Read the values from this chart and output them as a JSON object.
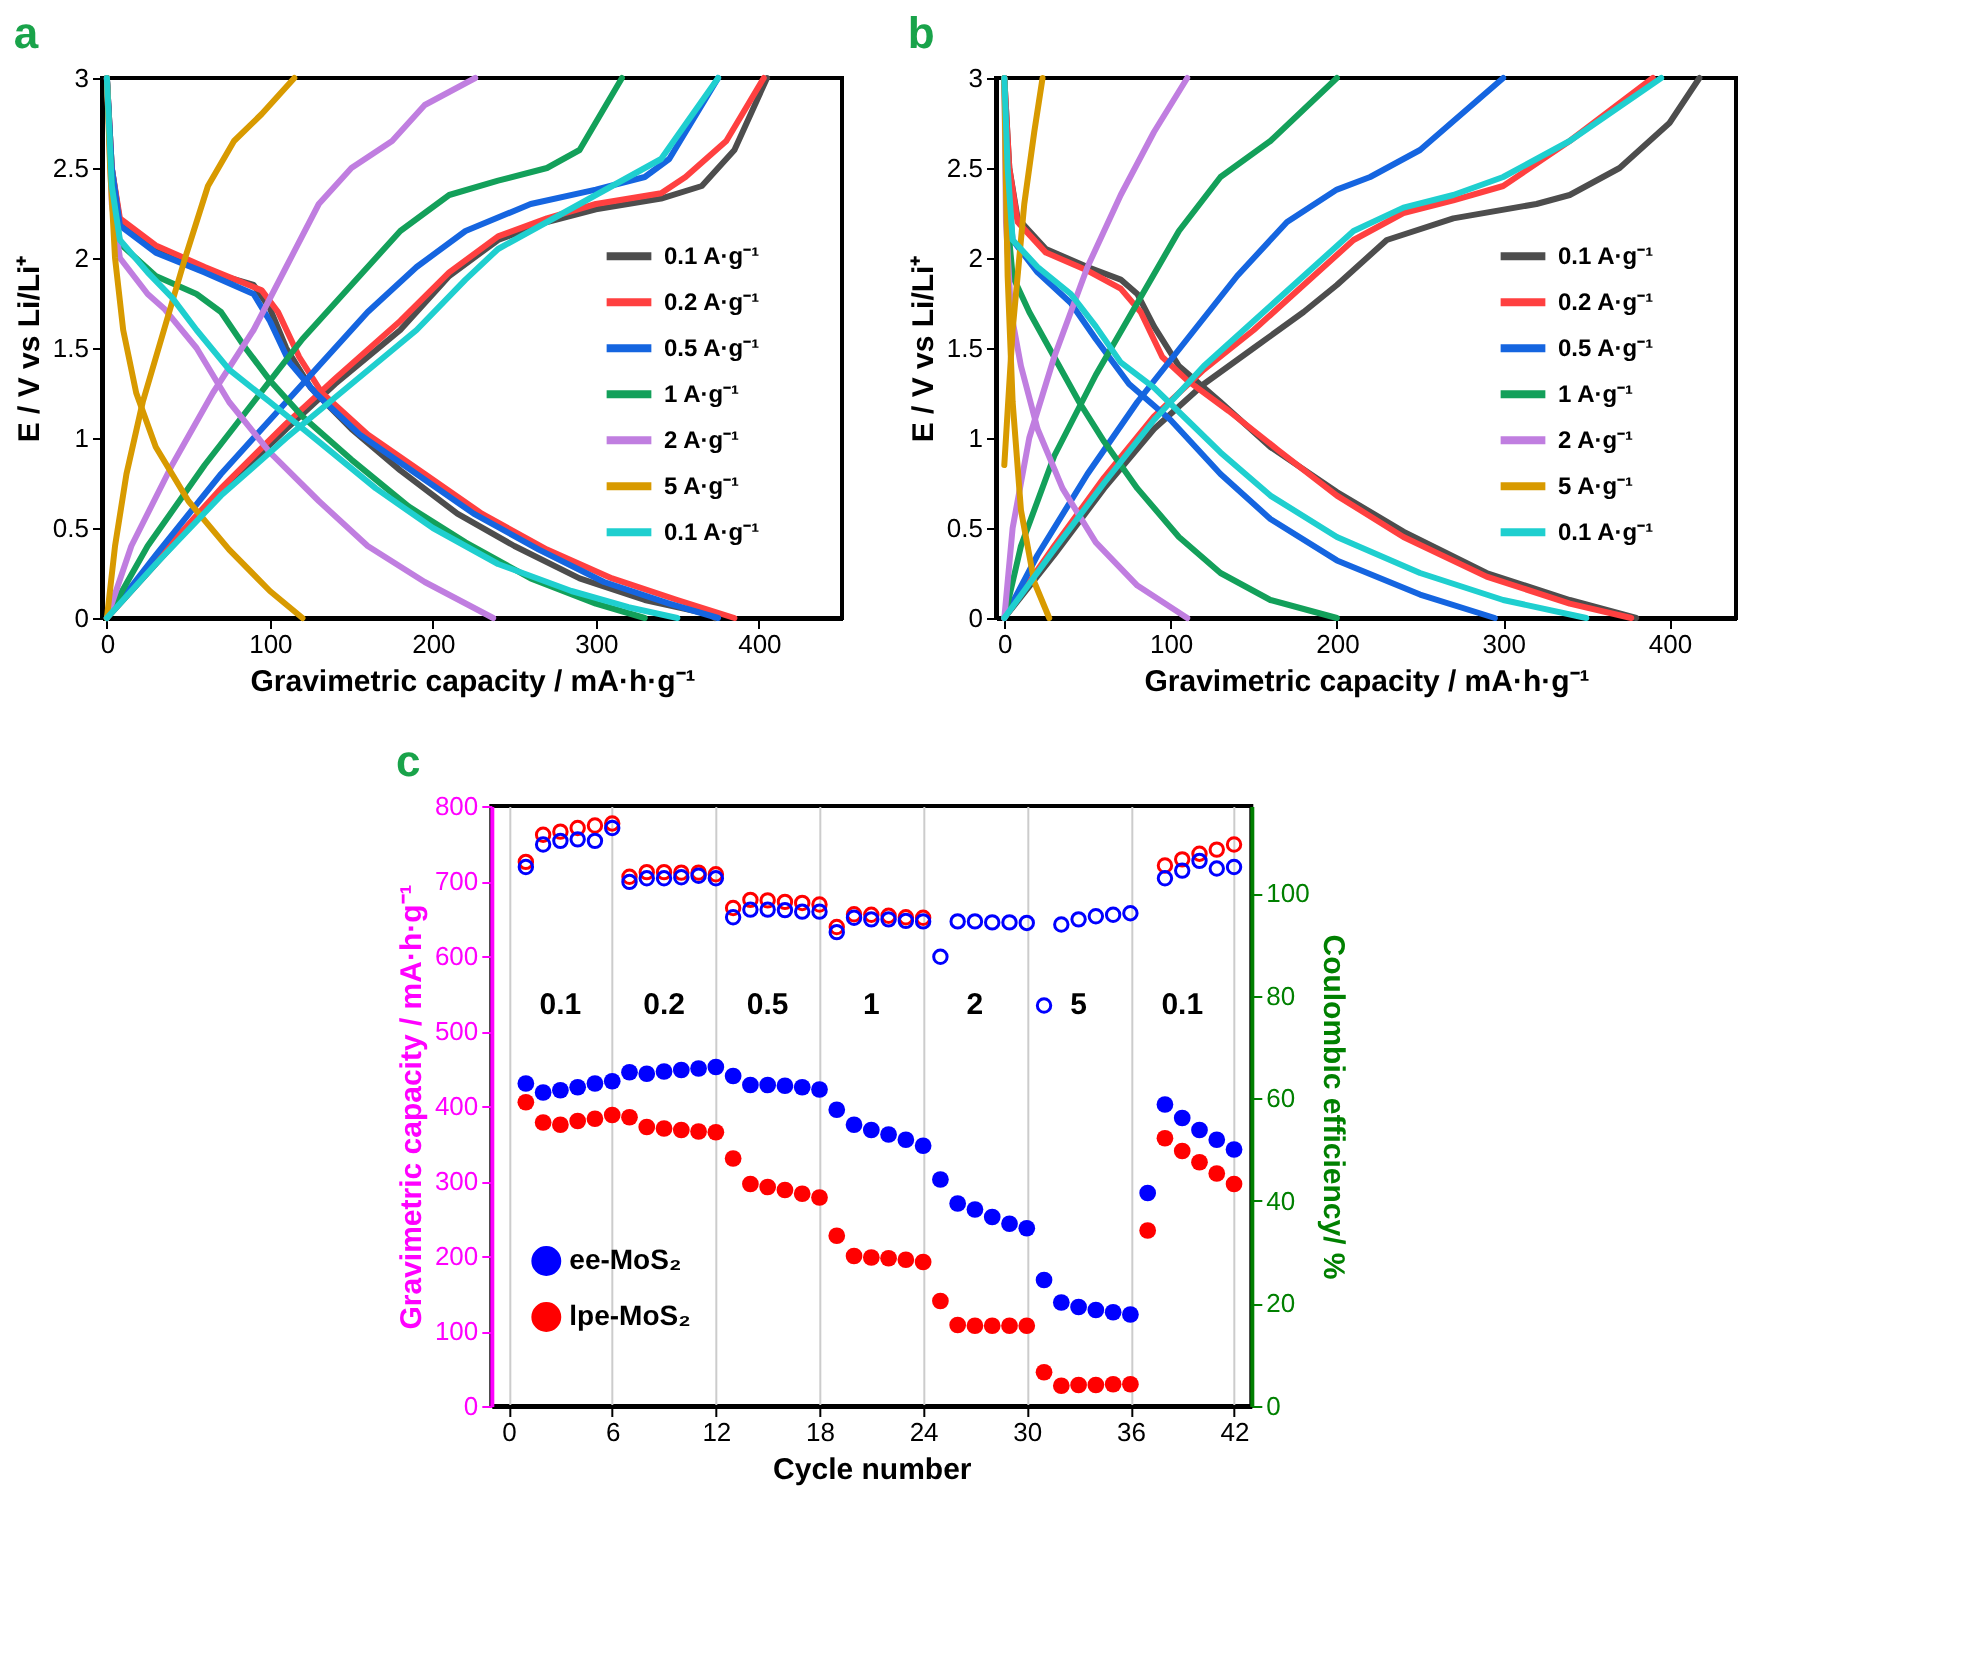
{
  "chart_data": [
    {
      "type": "line",
      "title": "a",
      "xlabel": "Gravimetric capacity / mA·h·g⁻¹",
      "ylabel": "E / V vs Li/Li⁺",
      "xlim": [
        -3,
        451
      ],
      "xticks": [
        0,
        100,
        200,
        300,
        400
      ],
      "ylim": [
        0,
        3
      ],
      "yticks": [
        0,
        0.5,
        1,
        1.5,
        2,
        2.5,
        3
      ],
      "grid": false,
      "legend": "right",
      "series": [
        {
          "name": "0.1 A·g⁻¹",
          "color": "#4d4d4d",
          "x": [
            0,
            3,
            8,
            30,
            60,
            90,
            100,
            110,
            125,
            150,
            180,
            215,
            250,
            290,
            330,
            370,
            373
          ],
          "values": [
            3,
            2.5,
            2.2,
            2.05,
            1.93,
            1.85,
            1.72,
            1.5,
            1.28,
            1.05,
            0.82,
            0.58,
            0.4,
            0.22,
            0.1,
            0.02,
            0
          ]
        },
        {
          "color": "#4d4d4d",
          "x": [
            0,
            30,
            70,
            110,
            140,
            180,
            210,
            240,
            270,
            300,
            340,
            365,
            385,
            405
          ],
          "values": [
            0,
            0.3,
            0.7,
            1.05,
            1.3,
            1.6,
            1.9,
            2.1,
            2.2,
            2.27,
            2.33,
            2.4,
            2.6,
            3
          ]
        },
        {
          "name": "0.2 A·g⁻¹",
          "color": "#ff4040",
          "x": [
            0,
            3,
            8,
            30,
            60,
            95,
            105,
            118,
            132,
            160,
            195,
            230,
            270,
            310,
            350,
            385
          ],
          "values": [
            3,
            2.5,
            2.22,
            2.07,
            1.95,
            1.82,
            1.7,
            1.45,
            1.25,
            1.02,
            0.8,
            0.58,
            0.38,
            0.22,
            0.1,
            0
          ]
        },
        {
          "color": "#ff4040",
          "x": [
            0,
            30,
            70,
            110,
            140,
            180,
            210,
            240,
            270,
            300,
            340,
            355,
            380,
            403
          ],
          "values": [
            0,
            0.32,
            0.72,
            1.08,
            1.33,
            1.65,
            1.92,
            2.12,
            2.22,
            2.3,
            2.36,
            2.45,
            2.65,
            3
          ]
        },
        {
          "name": "0.5 A·g⁻¹",
          "color": "#1565e0",
          "x": [
            0,
            3,
            8,
            30,
            60,
            90,
            100,
            112,
            128,
            155,
            190,
            225,
            265,
            305,
            345,
            375
          ],
          "values": [
            3,
            2.5,
            2.18,
            2.03,
            1.92,
            1.8,
            1.65,
            1.42,
            1.25,
            1.02,
            0.8,
            0.58,
            0.38,
            0.2,
            0.08,
            0
          ]
        },
        {
          "color": "#1565e0",
          "x": [
            0,
            30,
            70,
            100,
            130,
            160,
            190,
            220,
            260,
            300,
            330,
            345,
            375
          ],
          "values": [
            0,
            0.35,
            0.8,
            1.1,
            1.4,
            1.7,
            1.95,
            2.15,
            2.3,
            2.38,
            2.45,
            2.55,
            3
          ]
        },
        {
          "name": "1 A·g⁻¹",
          "color": "#13a05a",
          "x": [
            0,
            3,
            8,
            30,
            55,
            70,
            85,
            100,
            120,
            150,
            185,
            220,
            260,
            300,
            330
          ],
          "values": [
            3,
            2.4,
            2.08,
            1.9,
            1.8,
            1.7,
            1.5,
            1.32,
            1.12,
            0.88,
            0.62,
            0.42,
            0.22,
            0.08,
            0
          ]
        },
        {
          "color": "#13a05a",
          "x": [
            0,
            25,
            60,
            90,
            120,
            150,
            180,
            210,
            240,
            270,
            290,
            316
          ],
          "values": [
            0,
            0.4,
            0.85,
            1.2,
            1.55,
            1.85,
            2.15,
            2.35,
            2.43,
            2.5,
            2.6,
            3
          ]
        },
        {
          "name": "2 A·g⁻¹",
          "color": "#c07ee0",
          "x": [
            0,
            3,
            8,
            25,
            35,
            55,
            75,
            100,
            130,
            160,
            195,
            237
          ],
          "values": [
            3,
            2.3,
            2.0,
            1.8,
            1.72,
            1.5,
            1.2,
            0.92,
            0.65,
            0.4,
            0.2,
            0
          ]
        },
        {
          "color": "#c07ee0",
          "x": [
            0,
            15,
            40,
            65,
            90,
            110,
            130,
            150,
            175,
            195,
            226
          ],
          "values": [
            0,
            0.4,
            0.85,
            1.25,
            1.6,
            1.95,
            2.3,
            2.5,
            2.65,
            2.85,
            3
          ]
        },
        {
          "name": "5 A·g⁻¹",
          "color": "#d89a00",
          "x": [
            0,
            2,
            5,
            10,
            18,
            30,
            50,
            75,
            100,
            120
          ],
          "values": [
            3,
            2.5,
            2.0,
            1.6,
            1.25,
            0.95,
            0.65,
            0.38,
            0.15,
            0
          ]
        },
        {
          "color": "#d89a00",
          "x": [
            0,
            5,
            12,
            22,
            35,
            48,
            62,
            78,
            95,
            115
          ],
          "values": [
            0,
            0.4,
            0.8,
            1.2,
            1.6,
            2.0,
            2.4,
            2.65,
            2.8,
            3
          ]
        },
        {
          "name": "0.1 A·g⁻¹",
          "color": "#1fcfcf",
          "x": [
            0,
            3,
            8,
            25,
            40,
            55,
            75,
            100,
            130,
            165,
            200,
            240,
            285,
            320,
            350
          ],
          "values": [
            3,
            2.4,
            2.1,
            1.92,
            1.78,
            1.6,
            1.38,
            1.2,
            0.98,
            0.72,
            0.5,
            0.3,
            0.15,
            0.06,
            0
          ]
        },
        {
          "color": "#1fcfcf",
          "x": [
            0,
            30,
            70,
            110,
            150,
            190,
            220,
            240,
            270,
            300,
            340,
            375
          ],
          "values": [
            0,
            0.3,
            0.68,
            1.0,
            1.3,
            1.6,
            1.88,
            2.05,
            2.2,
            2.35,
            2.55,
            3
          ]
        }
      ]
    },
    {
      "type": "line",
      "title": "b",
      "xlabel": "Gravimetric capacity / mA·h·g⁻¹",
      "ylabel": "E / V vs Li/Li⁺",
      "xlim": [
        -5,
        440
      ],
      "xticks": [
        0,
        100,
        200,
        300,
        400
      ],
      "ylim": [
        0,
        3
      ],
      "yticks": [
        0,
        0.5,
        1,
        1.5,
        2,
        2.5,
        3
      ],
      "grid": false,
      "legend": "right",
      "series": [
        {
          "name": "0.1 A·g⁻¹",
          "color": "#4d4d4d",
          "x": [
            0,
            3,
            8,
            25,
            50,
            70,
            80,
            90,
            105,
            130,
            160,
            200,
            240,
            290,
            340,
            380
          ],
          "values": [
            3,
            2.5,
            2.22,
            2.05,
            1.95,
            1.88,
            1.8,
            1.62,
            1.4,
            1.2,
            0.95,
            0.7,
            0.48,
            0.25,
            0.1,
            0
          ]
        },
        {
          "color": "#4d4d4d",
          "x": [
            0,
            30,
            60,
            90,
            120,
            150,
            180,
            200,
            230,
            270,
            320,
            340,
            370,
            400,
            418
          ],
          "values": [
            0,
            0.35,
            0.72,
            1.05,
            1.3,
            1.5,
            1.7,
            1.85,
            2.1,
            2.22,
            2.3,
            2.35,
            2.5,
            2.75,
            3
          ]
        },
        {
          "name": "0.2 A·g⁻¹",
          "color": "#ff4040",
          "x": [
            0,
            3,
            8,
            25,
            50,
            70,
            82,
            95,
            110,
            135,
            165,
            200,
            240,
            290,
            340,
            377
          ],
          "values": [
            3,
            2.5,
            2.2,
            2.03,
            1.93,
            1.83,
            1.7,
            1.45,
            1.32,
            1.15,
            0.93,
            0.68,
            0.45,
            0.23,
            0.08,
            0
          ]
        },
        {
          "color": "#ff4040",
          "x": [
            0,
            30,
            60,
            90,
            120,
            150,
            180,
            210,
            240,
            270,
            300,
            340,
            390
          ],
          "values": [
            0,
            0.4,
            0.78,
            1.12,
            1.38,
            1.6,
            1.85,
            2.1,
            2.25,
            2.32,
            2.4,
            2.65,
            3
          ]
        },
        {
          "name": "0.5 A·g⁻¹",
          "color": "#1565e0",
          "x": [
            0,
            2,
            5,
            20,
            40,
            55,
            75,
            100,
            130,
            160,
            200,
            250,
            295
          ],
          "values": [
            3,
            2.4,
            2.1,
            1.92,
            1.75,
            1.55,
            1.3,
            1.1,
            0.8,
            0.55,
            0.32,
            0.13,
            0
          ]
        },
        {
          "color": "#1565e0",
          "x": [
            0,
            20,
            50,
            80,
            110,
            140,
            170,
            200,
            220,
            250,
            300
          ],
          "values": [
            0,
            0.35,
            0.8,
            1.2,
            1.55,
            1.9,
            2.2,
            2.38,
            2.45,
            2.6,
            3
          ]
        },
        {
          "name": "1 A·g⁻¹",
          "color": "#13a05a",
          "x": [
            0,
            2,
            5,
            15,
            30,
            45,
            60,
            80,
            105,
            130,
            160,
            200
          ],
          "values": [
            3,
            2.2,
            1.9,
            1.7,
            1.45,
            1.2,
            0.98,
            0.72,
            0.45,
            0.25,
            0.1,
            0
          ]
        },
        {
          "color": "#13a05a",
          "x": [
            0,
            10,
            30,
            55,
            80,
            105,
            130,
            160,
            200
          ],
          "values": [
            0,
            0.4,
            0.9,
            1.35,
            1.75,
            2.15,
            2.45,
            2.65,
            3
          ]
        },
        {
          "name": "2 A·g⁻¹",
          "color": "#c07ee0",
          "x": [
            0,
            1,
            4,
            10,
            20,
            35,
            55,
            80,
            110
          ],
          "values": [
            3,
            2.2,
            1.7,
            1.4,
            1.05,
            0.72,
            0.42,
            0.18,
            0
          ]
        },
        {
          "color": "#c07ee0",
          "x": [
            0,
            5,
            15,
            30,
            50,
            70,
            90,
            110
          ],
          "values": [
            0,
            0.5,
            1.0,
            1.45,
            1.95,
            2.35,
            2.7,
            3
          ]
        },
        {
          "name": "5 A·g⁻¹",
          "color": "#d89a00",
          "x": [
            0,
            1,
            2,
            5,
            10,
            18,
            27
          ],
          "values": [
            3,
            2.4,
            1.9,
            1.2,
            0.6,
            0.2,
            0
          ]
        },
        {
          "color": "#d89a00",
          "x": [
            0,
            5,
            12,
            18,
            23
          ],
          "values": [
            0.85,
            1.6,
            2.3,
            2.7,
            3
          ]
        },
        {
          "name": "0.1 A·g⁻¹",
          "color": "#1fcfcf",
          "x": [
            0,
            2,
            5,
            20,
            40,
            55,
            70,
            90,
            110,
            130,
            160,
            200,
            250,
            300,
            350
          ],
          "values": [
            3,
            2.5,
            2.1,
            1.95,
            1.8,
            1.62,
            1.42,
            1.28,
            1.1,
            0.92,
            0.68,
            0.45,
            0.25,
            0.1,
            0
          ]
        },
        {
          "color": "#1fcfcf",
          "x": [
            0,
            30,
            60,
            90,
            120,
            150,
            180,
            210,
            240,
            270,
            300,
            340,
            395
          ],
          "values": [
            0,
            0.38,
            0.75,
            1.1,
            1.4,
            1.65,
            1.9,
            2.15,
            2.28,
            2.35,
            2.45,
            2.65,
            3
          ]
        }
      ]
    },
    {
      "type": "scatter",
      "title": "c",
      "xlabel": "Cycle number",
      "ylabel": "Gravimetric capacity / mA·h·g⁻¹",
      "y2label": "Coulombic efficiency/ %",
      "xlim": [
        -1,
        43
      ],
      "xticks": [
        0,
        6,
        12,
        18,
        24,
        30,
        36,
        42
      ],
      "ylim": [
        0,
        800
      ],
      "yticks": [
        0,
        100,
        200,
        300,
        400,
        500,
        600,
        700,
        800
      ],
      "y2lim": [
        0,
        117
      ],
      "y2ticks": [
        0,
        20,
        40,
        60,
        80,
        100
      ],
      "grid": "x",
      "legend": "bottom left",
      "marker": "circle",
      "x": [
        1,
        2,
        3,
        4,
        5,
        6,
        7,
        8,
        9,
        10,
        11,
        12,
        13,
        14,
        15,
        16,
        17,
        18,
        19,
        20,
        21,
        22,
        23,
        24,
        25,
        26,
        27,
        28,
        29,
        30,
        31,
        32,
        33,
        34,
        35,
        36,
        37,
        38,
        39,
        40,
        41,
        42
      ],
      "series": [
        {
          "name": "ee-MoS₂",
          "color": "#0000ff",
          "values": [
            430,
            418,
            421,
            425,
            430,
            433,
            445,
            443,
            446,
            448,
            450,
            452,
            440,
            428,
            428,
            427,
            425,
            422,
            395,
            375,
            368,
            362,
            355,
            347,
            302,
            270,
            262,
            252,
            243,
            237,
            168,
            138,
            132,
            128,
            125,
            122,
            284,
            402,
            384,
            368,
            355,
            342
          ]
        },
        {
          "name": "lpe-MoS₂",
          "color": "#ff0000",
          "values": [
            405,
            378,
            375,
            380,
            383,
            388,
            385,
            372,
            370,
            368,
            366,
            365,
            330,
            296,
            292,
            288,
            283,
            278,
            227,
            200,
            198,
            197,
            195,
            192,
            140,
            108,
            107,
            107,
            107,
            107,
            45,
            27,
            28,
            28,
            29,
            29,
            234,
            357,
            340,
            325,
            310,
            296
          ]
        },
        {
          "color": "#ff0000",
          "axis": "y2",
          "values": [
            106.1,
            111.4,
            112.0,
            112.7,
            113.2,
            113.6,
            103.2,
            104.1,
            104.1,
            104.0,
            104.0,
            103.7,
            97.1,
            98.7,
            98.6,
            98.3,
            98.1,
            97.8,
            93.4,
            95.9,
            95.8,
            95.6,
            95.3,
            95.2,
            null,
            null,
            null,
            null,
            null,
            null,
            null,
            null,
            null,
            null,
            null,
            null,
            null,
            105.4,
            106.6,
            107.7,
            108.5,
            109.5
          ]
        },
        {
          "color": "#0000ff",
          "axis": "y2",
          "values": [
            105.1,
            109.5,
            110.2,
            110.5,
            110.2,
            112.7,
            102.2,
            102.9,
            102.9,
            103.1,
            103.4,
            102.9,
            95.3,
            96.8,
            96.8,
            96.7,
            96.4,
            96.4,
            92.4,
            95.2,
            94.9,
            94.9,
            94.6,
            94.5,
            87.6,
            94.5,
            94.5,
            94.3,
            94.3,
            94.2,
            78.1,
            93.9,
            94.9,
            95.5,
            95.8,
            96.1,
            null,
            102.9,
            104.4,
            106.3,
            104.8,
            105.1
          ]
        }
      ],
      "annotations": [
        "0.1",
        "0.2",
        "0.5",
        "1",
        "2",
        "5",
        "0.1"
      ]
    }
  ]
}
